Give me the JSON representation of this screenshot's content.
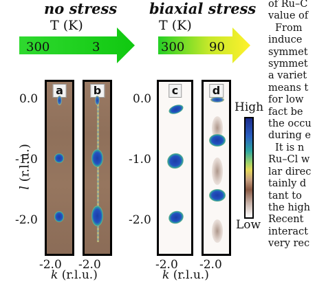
{
  "headers": {
    "left": "no stress",
    "right": "biaxial stress"
  },
  "temperature_axis": {
    "label": "T (K)",
    "left_values": [
      "300",
      "3"
    ],
    "right_values": [
      "300",
      "90"
    ]
  },
  "y_axis": {
    "label": "l (r.l.u.)",
    "label_symbol": "l",
    "label_unit": "(r.l.u.)",
    "ticks": [
      "0.0",
      "-1.0",
      "-2.0"
    ]
  },
  "x_axis": {
    "label_symbol": "k",
    "label_unit": "(r.l.u.)",
    "ticks": [
      "-2.0",
      "-2.0",
      "-2.0",
      "-2.0"
    ]
  },
  "panels": [
    {
      "label": "a"
    },
    {
      "label": "b"
    },
    {
      "label": "c"
    },
    {
      "label": "d"
    }
  ],
  "colorbar": {
    "high": "High",
    "low": "Low",
    "colors": [
      "#1c2c8c",
      "#2a5fc0",
      "#2ea6a0",
      "#9fd36a",
      "#e6d95a",
      "#c8a080",
      "#8a5a44",
      "#ffffff"
    ]
  },
  "sidebar_text": [
    "of Ru–C",
    "value of",
    "From",
    "induce",
    "symmet",
    "symmet",
    "a variet",
    "means t",
    "for low",
    "fact be",
    "the occu",
    "during e",
    "It is n",
    "Ru–Cl w",
    "lar direc",
    "tainly d",
    "tant to",
    "the high",
    "Recent",
    "interact",
    "very rec"
  ]
}
